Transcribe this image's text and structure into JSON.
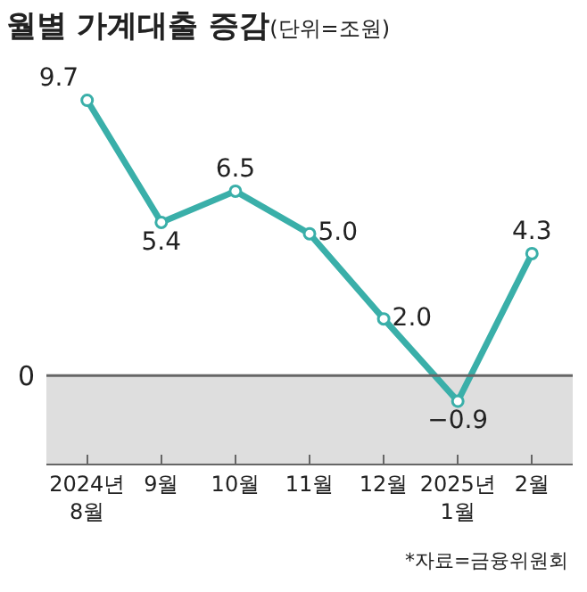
{
  "chart_data": {
    "type": "line",
    "title": "월별 가계대출 증감",
    "subtitle": "(단위=조원)",
    "categories": [
      "2024년\n8월",
      "9월",
      "10월",
      "11월",
      "12월",
      "2025년\n1월",
      "2월"
    ],
    "series": [
      {
        "color": "#3aafa9",
        "values": [
          9.7,
          5.4,
          6.5,
          5.0,
          2.0,
          -0.9,
          4.3
        ],
        "value_labels": [
          "9.7",
          "5.4",
          "6.5",
          "5.0",
          "2.0",
          "−0.9",
          "4.3"
        ]
      }
    ],
    "marker": "circle",
    "line_style": "solid",
    "grid": false,
    "ref_lines": [
      {
        "axis": "y",
        "value": 0,
        "label": "0"
      }
    ],
    "bands": [
      {
        "axis": "y",
        "from": -3.1,
        "to": 0,
        "color": "#dedede"
      }
    ],
    "annotations": [
      "*자료=금융위원회"
    ]
  }
}
